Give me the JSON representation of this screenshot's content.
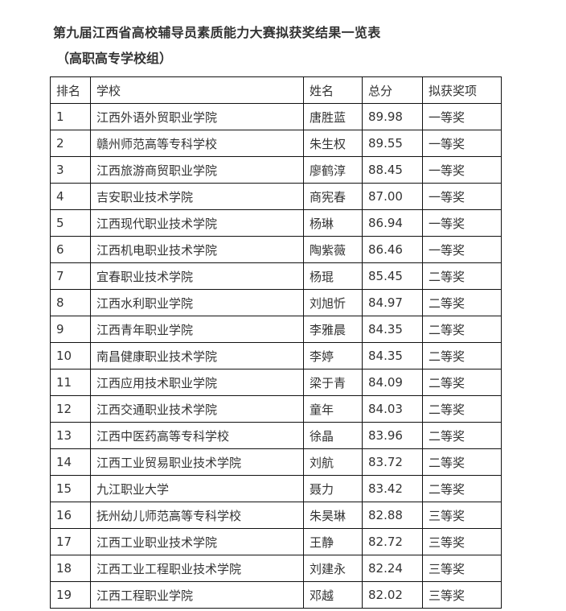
{
  "title": "第九届江西省高校辅导员素质能力大赛拟获奖结果一览表",
  "subtitle": "（高职高专学校组）",
  "table": {
    "headers": [
      "排名",
      "学校",
      "姓名",
      "总分",
      "拟获奖项"
    ],
    "rows": [
      [
        "1",
        "江西外语外贸职业学院",
        "唐胜蓝",
        "89.98",
        "一等奖"
      ],
      [
        "2",
        "赣州师范高等专科学校",
        "朱生权",
        "89.55",
        "一等奖"
      ],
      [
        "3",
        "江西旅游商贸职业学院",
        "廖鹤淳",
        "88.45",
        "一等奖"
      ],
      [
        "4",
        "吉安职业技术学院",
        "商宪春",
        "87.00",
        "一等奖"
      ],
      [
        "5",
        "江西现代职业技术学院",
        "杨琳",
        "86.94",
        "一等奖"
      ],
      [
        "6",
        "江西机电职业技术学院",
        "陶紫薇",
        "86.46",
        "一等奖"
      ],
      [
        "7",
        "宜春职业技术学院",
        "杨琨",
        "85.45",
        "二等奖"
      ],
      [
        "8",
        "江西水利职业学院",
        "刘旭忻",
        "84.97",
        "二等奖"
      ],
      [
        "9",
        "江西青年职业学院",
        "李雅晨",
        "84.35",
        "二等奖"
      ],
      [
        "10",
        "南昌健康职业技术学院",
        "李婷",
        "84.35",
        "二等奖"
      ],
      [
        "11",
        "江西应用技术职业学院",
        "梁于青",
        "84.09",
        "二等奖"
      ],
      [
        "12",
        "江西交通职业技术学院",
        "童年",
        "84.03",
        "二等奖"
      ],
      [
        "13",
        "江西中医药高等专科学校",
        "徐晶",
        "83.96",
        "二等奖"
      ],
      [
        "14",
        "江西工业贸易职业技术学院",
        "刘航",
        "83.72",
        "二等奖"
      ],
      [
        "15",
        "九江职业大学",
        "聂力",
        "83.42",
        "二等奖"
      ],
      [
        "16",
        "抚州幼儿师范高等专科学校",
        "朱昊琳",
        "82.88",
        "三等奖"
      ],
      [
        "17",
        "江西工业职业技术学院",
        "王静",
        "82.72",
        "三等奖"
      ],
      [
        "18",
        "江西工业工程职业技术学院",
        "刘建永",
        "82.24",
        "三等奖"
      ],
      [
        "19",
        "江西工程职业学院",
        "邓越",
        "82.02",
        "三等奖"
      ]
    ]
  }
}
